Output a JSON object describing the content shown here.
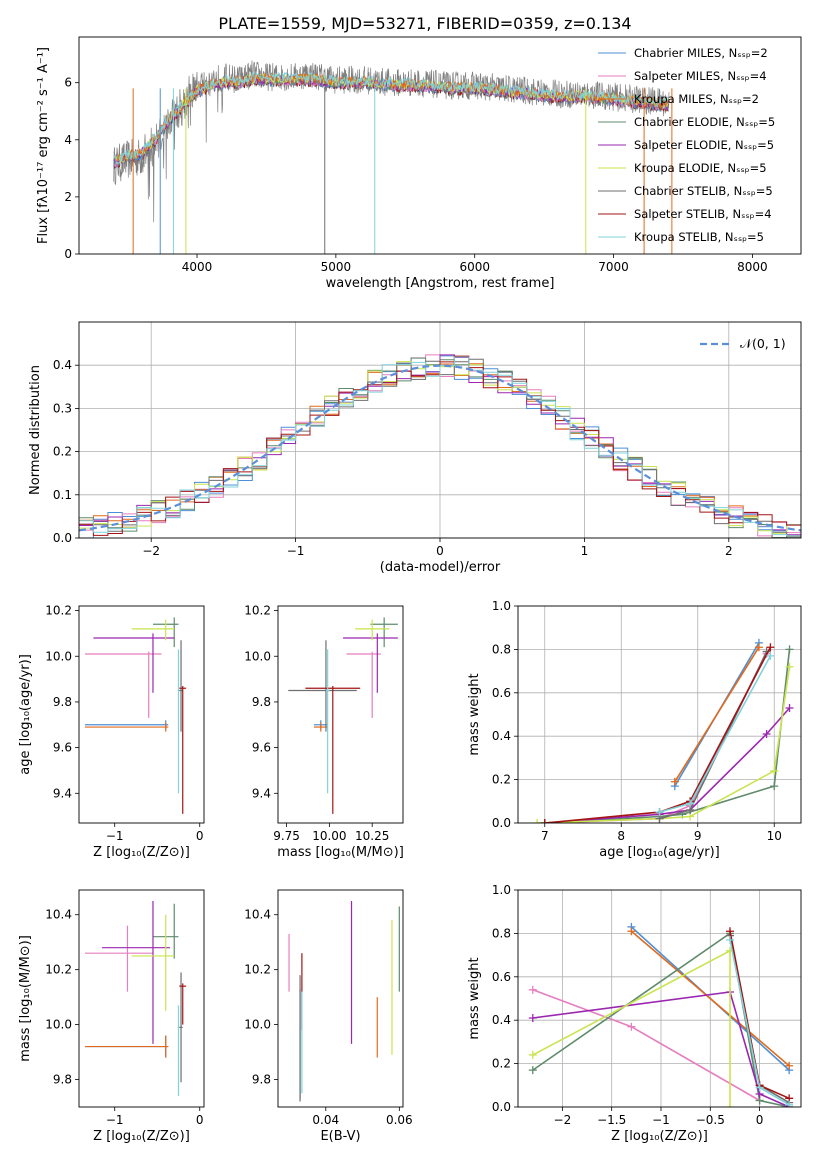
{
  "title": "PLATE=1559, MJD=53271, FIBERID=0359, z=0.134",
  "colors": [
    "#4c8fd6",
    "#e67ebf",
    "#e06a1d",
    "#5f8b6b",
    "#9b27b0",
    "#c9e44f",
    "#6f6f6f",
    "#a41414",
    "#7fd3da"
  ],
  "chart_data": [
    {
      "id": "spectrum",
      "type": "line",
      "xlabel": "wavelength [Angstrom, rest frame]",
      "ylabel": "Flux [fλ10⁻¹⁷ erg cm⁻² s⁻¹ A⁻¹]",
      "xlim": [
        3150,
        8350
      ],
      "ylim": [
        0,
        7.6
      ],
      "xticks": [
        4000,
        5000,
        6000,
        7000,
        8000
      ],
      "yticks": [
        0,
        2,
        4,
        6
      ],
      "legend_position": "top-right",
      "legend": [
        "Chabrier MILES, Nₛₛₚ=2",
        "Salpeter MILES, Nₛₛₚ=4",
        "Kroupa MILES, Nₛₛₚ=2",
        "Chabrier ELODIE, Nₛₛₚ=5",
        "Salpeter ELODIE, Nₛₛₚ=5",
        "Kroupa ELODIE, Nₛₛₚ=5",
        "Chabrier STELIB, Nₛₛₚ=5",
        "Salpeter STELIB, Nₛₛₚ=4",
        "Kroupa STELIB, Nₛₛₚ=5"
      ],
      "data_x": [
        3400,
        3500,
        3600,
        3700,
        3800,
        3900,
        4000,
        4100,
        4200,
        4300,
        4400,
        4500,
        4600,
        4700,
        4800,
        4900,
        5000,
        5200,
        5400,
        5600,
        5800,
        6000,
        6200,
        6400,
        6600,
        6800,
        7000,
        7200,
        7400
      ],
      "data_y": [
        3.1,
        3.3,
        3.4,
        3.9,
        4.6,
        5.3,
        5.9,
        6.1,
        6.2,
        6.1,
        6.3,
        6.2,
        6.2,
        6.2,
        6.3,
        6.2,
        6.1,
        6.1,
        6.0,
        6.0,
        5.9,
        5.9,
        5.8,
        5.7,
        5.6,
        5.6,
        5.5,
        5.4,
        5.3
      ],
      "model_x": [
        3400,
        3500,
        3600,
        3700,
        3800,
        3900,
        4000,
        4100,
        4200,
        4300,
        4400,
        4600,
        4800,
        5000,
        5200,
        5400,
        5600,
        5800,
        6000,
        6200,
        6400,
        6600,
        6800,
        7000,
        7200,
        7400
      ],
      "model_y": [
        3.2,
        3.4,
        3.5,
        4.0,
        4.7,
        5.2,
        5.7,
        5.9,
        6.0,
        6.0,
        6.1,
        6.1,
        6.1,
        6.0,
        6.0,
        5.9,
        5.9,
        5.8,
        5.8,
        5.7,
        5.6,
        5.5,
        5.5,
        5.4,
        5.3,
        5.2
      ]
    },
    {
      "id": "residuals",
      "type": "histogram",
      "xlabel": "(data-model)/error",
      "ylabel": "Normed distribution",
      "xlim": [
        -2.5,
        2.5
      ],
      "ylim": [
        0,
        0.5
      ],
      "xticks": [
        -2,
        -1,
        0,
        1,
        2
      ],
      "yticks": [
        0.0,
        0.1,
        0.2,
        0.3,
        0.4
      ],
      "grid": true,
      "legend_position": "top-right",
      "legend": [
        "𝒩(0, 1)"
      ],
      "bin_width": 0.1
    },
    {
      "id": "age_vs_Z",
      "type": "errorbar",
      "xlabel": "Z [log₁₀(Z/Z⊙)]",
      "ylabel": "age  [log₁₀(age/yr)]",
      "xlim": [
        -1.42,
        0.05
      ],
      "ylim": [
        9.27,
        10.22
      ],
      "xticks": [
        -1,
        0
      ],
      "yticks": [
        9.4,
        9.6,
        9.8,
        10.0,
        10.2
      ],
      "points": [
        {
          "c": 0,
          "x": -0.4,
          "xe": [
            0.95,
            0.03
          ],
          "y": 9.7,
          "ye": [
            0.02,
            0.02
          ]
        },
        {
          "c": 1,
          "x": -0.6,
          "xe": [
            0.75,
            0.15
          ],
          "y": 10.01,
          "ye": [
            0.28,
            0.01
          ]
        },
        {
          "c": 2,
          "x": -0.4,
          "xe": [
            0.95,
            0.03
          ],
          "y": 9.69,
          "ye": [
            0.02,
            0.02
          ]
        },
        {
          "c": 3,
          "x": -0.3,
          "xe": [
            0.25,
            0.05
          ],
          "y": 10.14,
          "ye": [
            0.1,
            0.03
          ]
        },
        {
          "c": 4,
          "x": -0.55,
          "xe": [
            0.7,
            0.25
          ],
          "y": 10.08,
          "ye": [
            0.24,
            0.02
          ]
        },
        {
          "c": 5,
          "x": -0.4,
          "xe": [
            0.4,
            0.1
          ],
          "y": 10.12,
          "ye": [
            0.05,
            0.04
          ]
        },
        {
          "c": 6,
          "x": -0.22,
          "xe": [
            0.02,
            0.02
          ],
          "y": 9.85,
          "ye": [
            0.18,
            0.22
          ]
        },
        {
          "c": 7,
          "x": -0.2,
          "xe": [
            0.04,
            0.04
          ],
          "y": 9.86,
          "ye": [
            0.55,
            0.01
          ]
        },
        {
          "c": 8,
          "x": -0.25,
          "xe": [
            0.01,
            0.01
          ],
          "y": 9.85,
          "ye": [
            0.45,
            0.18
          ]
        }
      ]
    },
    {
      "id": "age_vs_mass",
      "type": "errorbar",
      "xlabel": "mass [log₁₀(M/M⊙)]",
      "ylabel": "",
      "xlim": [
        9.7,
        10.43
      ],
      "ylim": [
        9.27,
        10.22
      ],
      "xticks": [
        9.75,
        10.0,
        10.25
      ],
      "xtick_labels": [
        "9.75",
        "10.00",
        "10.25"
      ],
      "yticks": [
        9.4,
        9.6,
        9.8,
        10.0,
        10.2
      ],
      "points": [
        {
          "c": 0,
          "x": 9.95,
          "xe": [
            0.04,
            0.04
          ],
          "y": 9.7,
          "ye": [
            0.02,
            0.02
          ]
        },
        {
          "c": 1,
          "x": 10.25,
          "xe": [
            0.15,
            0.05
          ],
          "y": 10.01,
          "ye": [
            0.28,
            0.01
          ]
        },
        {
          "c": 2,
          "x": 9.95,
          "xe": [
            0.04,
            0.04
          ],
          "y": 9.69,
          "ye": [
            0.02,
            0.02
          ]
        },
        {
          "c": 3,
          "x": 10.32,
          "xe": [
            0.08,
            0.08
          ],
          "y": 10.14,
          "ye": [
            0.1,
            0.03
          ]
        },
        {
          "c": 4,
          "x": 10.28,
          "xe": [
            0.2,
            0.12
          ],
          "y": 10.08,
          "ye": [
            0.24,
            0.02
          ]
        },
        {
          "c": 5,
          "x": 10.25,
          "xe": [
            0.1,
            0.1
          ],
          "y": 10.12,
          "ye": [
            0.05,
            0.04
          ]
        },
        {
          "c": 6,
          "x": 9.98,
          "xe": [
            0.22,
            0.18
          ],
          "y": 9.85,
          "ye": [
            0.18,
            0.22
          ]
        },
        {
          "c": 7,
          "x": 10.02,
          "xe": [
            0.16,
            0.16
          ],
          "y": 9.86,
          "ye": [
            0.55,
            0.01
          ]
        },
        {
          "c": 8,
          "x": 9.99,
          "xe": [
            0.01,
            0.01
          ],
          "y": 9.85,
          "ye": [
            0.45,
            0.18
          ]
        }
      ]
    },
    {
      "id": "weight_vs_age",
      "type": "line",
      "xlabel": "age  [log₁₀(age/yr)]",
      "ylabel": "mass weight",
      "xlim": [
        6.65,
        10.35
      ],
      "ylim": [
        0,
        1.0
      ],
      "xticks": [
        7,
        8,
        9,
        10
      ],
      "yticks": [
        0.0,
        0.2,
        0.4,
        0.6,
        0.8,
        1.0
      ],
      "grid": true,
      "series": [
        {
          "c": 0,
          "x": [
            8.7,
            9.8
          ],
          "y": [
            0.17,
            0.83
          ]
        },
        {
          "c": 1,
          "x": [
            7.0,
            8.5,
            8.9,
            9.9
          ],
          "y": [
            0.0,
            0.02,
            0.08,
            0.78
          ]
        },
        {
          "c": 2,
          "x": [
            8.7,
            9.8
          ],
          "y": [
            0.19,
            0.81
          ]
        },
        {
          "c": 3,
          "x": [
            7.0,
            8.5,
            8.8,
            10.0,
            10.2
          ],
          "y": [
            0.0,
            0.03,
            0.04,
            0.17,
            0.8
          ]
        },
        {
          "c": 4,
          "x": [
            7.0,
            8.5,
            8.9,
            9.9,
            10.2
          ],
          "y": [
            0.0,
            0.04,
            0.06,
            0.41,
            0.53
          ]
        },
        {
          "c": 5,
          "x": [
            6.9,
            8.5,
            8.9,
            10.0,
            10.2
          ],
          "y": [
            0.0,
            0.02,
            0.03,
            0.24,
            0.72
          ]
        },
        {
          "c": 6,
          "x": [
            8.5,
            8.9,
            9.9
          ],
          "y": [
            0.02,
            0.06,
            0.79
          ]
        },
        {
          "c": 7,
          "x": [
            7.0,
            8.5,
            8.9,
            9.95
          ],
          "y": [
            0.0,
            0.05,
            0.1,
            0.81
          ]
        },
        {
          "c": 8,
          "x": [
            8.5,
            8.9,
            9.95
          ],
          "y": [
            0.05,
            0.09,
            0.77
          ]
        }
      ]
    },
    {
      "id": "mass_vs_Z",
      "type": "errorbar",
      "xlabel": "Z [log₁₀(Z/Z⊙)]",
      "ylabel": "mass [log₁₀(M/M⊙)]",
      "xlim": [
        -1.42,
        0.05
      ],
      "ylim": [
        9.7,
        10.49
      ],
      "xticks": [
        -1,
        0
      ],
      "yticks": [
        9.8,
        10.0,
        10.2,
        10.4
      ],
      "points": [
        {
          "c": 0,
          "x": -0.4,
          "xe": [
            0.95,
            0.03
          ],
          "y": 9.92,
          "ye": [
            0.04,
            0.04
          ]
        },
        {
          "c": 1,
          "x": -0.85,
          "xe": [
            0.5,
            0.3
          ],
          "y": 10.26,
          "ye": [
            0.14,
            0.1
          ]
        },
        {
          "c": 2,
          "x": -0.4,
          "xe": [
            0.95,
            0.03
          ],
          "y": 9.92,
          "ye": [
            0.04,
            0.04
          ]
        },
        {
          "c": 3,
          "x": -0.3,
          "xe": [
            0.25,
            0.05
          ],
          "y": 10.32,
          "ye": [
            0.08,
            0.12
          ]
        },
        {
          "c": 4,
          "x": -0.55,
          "xe": [
            0.6,
            0.2
          ],
          "y": 10.28,
          "ye": [
            0.35,
            0.17
          ]
        },
        {
          "c": 5,
          "x": -0.4,
          "xe": [
            0.4,
            0.1
          ],
          "y": 10.25,
          "ye": [
            0.2,
            0.15
          ]
        },
        {
          "c": 6,
          "x": -0.22,
          "xe": [
            0.02,
            0.02
          ],
          "y": 9.99,
          "ye": [
            0.2,
            0.2
          ]
        },
        {
          "c": 7,
          "x": -0.2,
          "xe": [
            0.04,
            0.04
          ],
          "y": 10.14,
          "ye": [
            0.14,
            0.01
          ]
        },
        {
          "c": 8,
          "x": -0.25,
          "xe": [
            0.01,
            0.01
          ],
          "y": 9.99,
          "ye": [
            0.25,
            0.08
          ]
        }
      ]
    },
    {
      "id": "mass_vs_EBV",
      "type": "errorbar",
      "xlabel": "E(B-V)",
      "ylabel": "",
      "xlim": [
        0.027,
        0.061
      ],
      "ylim": [
        9.7,
        10.49
      ],
      "xticks": [
        0.04,
        0.06
      ],
      "yticks": [
        9.8,
        10.0,
        10.2,
        10.4
      ],
      "points": [
        {
          "c": 0,
          "x": 0.033,
          "xe": [
            0,
            0
          ],
          "y": 9.93,
          "ye": [
            0.2,
            0.2
          ]
        },
        {
          "c": 1,
          "x": 0.03,
          "xe": [
            0,
            0
          ],
          "y": 10.24,
          "ye": [
            0.12,
            0.09
          ]
        },
        {
          "c": 2,
          "x": 0.054,
          "xe": [
            0,
            0
          ],
          "y": 9.98,
          "ye": [
            0.1,
            0.12
          ]
        },
        {
          "c": 3,
          "x": 0.06,
          "xe": [
            0,
            0
          ],
          "y": 10.32,
          "ye": [
            0.2,
            0.11
          ]
        },
        {
          "c": 4,
          "x": 0.047,
          "xe": [
            0,
            0
          ],
          "y": 10.19,
          "ye": [
            0.26,
            0.26
          ]
        },
        {
          "c": 5,
          "x": 0.058,
          "xe": [
            0,
            0
          ],
          "y": 10.14,
          "ye": [
            0.25,
            0.24
          ]
        },
        {
          "c": 6,
          "x": 0.033,
          "xe": [
            0,
            0
          ],
          "y": 9.99,
          "ye": [
            0.27,
            0.19
          ]
        },
        {
          "c": 7,
          "x": 0.0335,
          "xe": [
            0,
            0
          ],
          "y": 10.13,
          "ye": [
            0.15,
            0.13
          ]
        },
        {
          "c": 8,
          "x": 0.0335,
          "xe": [
            0,
            0
          ],
          "y": 9.91,
          "ye": [
            0.16,
            0.21
          ]
        }
      ]
    },
    {
      "id": "weight_vs_Z",
      "type": "line",
      "xlabel": "Z [log₁₀(Z/Z⊙)]",
      "ylabel": "mass weight",
      "xlim": [
        -2.45,
        0.42
      ],
      "ylim": [
        0,
        1.0
      ],
      "xticks": [
        -2.0,
        -1.5,
        -1.0,
        -0.5,
        0.0
      ],
      "yticks": [
        0.0,
        0.2,
        0.4,
        0.6,
        0.8,
        1.0
      ],
      "grid": true,
      "series": [
        {
          "c": 0,
          "x": [
            -1.3,
            0.3
          ],
          "y": [
            0.83,
            0.17
          ]
        },
        {
          "c": 1,
          "x": [
            -2.3,
            -1.3,
            0.0
          ],
          "y": [
            0.54,
            0.37,
            0.03
          ]
        },
        {
          "c": 2,
          "x": [
            -1.3,
            0.3
          ],
          "y": [
            0.81,
            0.19
          ]
        },
        {
          "c": 3,
          "x": [
            -2.3,
            -0.3,
            0.0,
            0.3
          ],
          "y": [
            0.17,
            0.8,
            0.03,
            0.0
          ]
        },
        {
          "c": 4,
          "x": [
            -2.3,
            -0.3,
            0.0,
            0.3
          ],
          "y": [
            0.41,
            0.53,
            0.06,
            0.0
          ]
        },
        {
          "c": 5,
          "x": [
            -2.3,
            -0.3,
            -0.3
          ],
          "y": [
            0.24,
            0.72,
            0.0
          ]
        },
        {
          "c": 6,
          "x": [
            -0.3,
            0.0,
            0.3
          ],
          "y": [
            0.79,
            0.1,
            0.02
          ]
        },
        {
          "c": 7,
          "x": [
            -0.3,
            0.0,
            0.3
          ],
          "y": [
            0.81,
            0.1,
            0.04
          ]
        },
        {
          "c": 8,
          "x": [
            -0.3,
            0.0,
            0.3
          ],
          "y": [
            0.77,
            0.09,
            0.01
          ]
        }
      ]
    }
  ]
}
